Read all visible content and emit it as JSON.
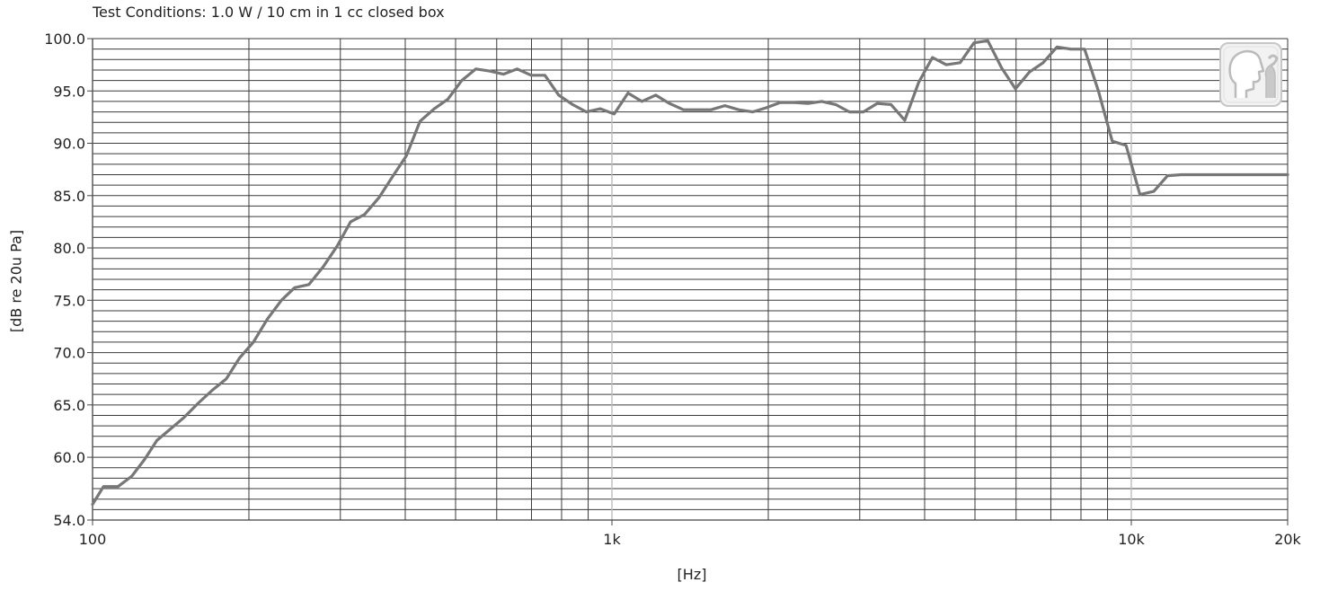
{
  "chart_data": {
    "type": "line",
    "title": "Test Conditions: 1.0 W  / 10 cm in 1 cc closed box",
    "xlabel": "[Hz]",
    "ylabel": "[dB re 20u Pa]",
    "x_scale": "log",
    "xlim": [
      100,
      20000
    ],
    "ylim": [
      54,
      100
    ],
    "x_ticks": [
      {
        "value": 100,
        "label": "100"
      },
      {
        "value": 1000,
        "label": "1k"
      },
      {
        "value": 10000,
        "label": "10k"
      },
      {
        "value": 20000,
        "label": "20k"
      }
    ],
    "y_ticks": [
      {
        "value": 100,
        "label": "100.0"
      },
      {
        "value": 95,
        "label": "95.0"
      },
      {
        "value": 90,
        "label": "90.0"
      },
      {
        "value": 85,
        "label": "85.0"
      },
      {
        "value": 80,
        "label": "80.0"
      },
      {
        "value": 75,
        "label": "75.0"
      },
      {
        "value": 70,
        "label": "70.0"
      },
      {
        "value": 65,
        "label": "65.0"
      },
      {
        "value": 60,
        "label": "60.0"
      },
      {
        "value": 54,
        "label": "54.0"
      }
    ],
    "grid": true,
    "line_color": "#777777",
    "series": [
      {
        "x": [
          100,
          105,
          112,
          119,
          126,
          133,
          142,
          150,
          160,
          170,
          181,
          192,
          204,
          217,
          231,
          245,
          261,
          278,
          296,
          314,
          334,
          356,
          378,
          402,
          427,
          455,
          483,
          514,
          547,
          581,
          618,
          657,
          699,
          743,
          790,
          840,
          893,
          950,
          1010,
          1074,
          1142,
          1214,
          1291,
          1373,
          1459,
          1552,
          1650,
          1754,
          1866,
          1984,
          2109,
          2243,
          2385,
          2535,
          2696,
          2866,
          3048,
          3240,
          3446,
          3663,
          3895,
          4141,
          4403,
          4682,
          4978,
          5293,
          5627,
          5983,
          6362,
          6764,
          7192,
          7647,
          8130,
          8644,
          9191,
          9772,
          10390,
          11047,
          11746,
          12489,
          13279,
          14119,
          15012,
          15961,
          16970,
          18044,
          19185,
          20000
        ],
        "y": [
          55.5,
          57.2,
          57.2,
          58.2,
          59.8,
          61.6,
          62.8,
          63.8,
          65.2,
          66.4,
          67.5,
          69.5,
          71.0,
          73.2,
          75.0,
          76.2,
          76.5,
          78.2,
          80.2,
          82.5,
          83.2,
          84.8,
          86.8,
          88.8,
          92.1,
          93.3,
          94.2,
          96.0,
          97.1,
          96.9,
          96.6,
          97.1,
          96.5,
          96.5,
          94.6,
          93.7,
          93.0,
          93.3,
          92.8,
          94.8,
          94.0,
          94.6,
          93.8,
          93.2,
          93.2,
          93.2,
          93.6,
          93.2,
          93.0,
          93.4,
          93.9,
          93.9,
          93.8,
          94.0,
          93.7,
          93.0,
          93.0,
          93.8,
          93.7,
          92.2,
          95.8,
          98.2,
          97.5,
          97.7,
          99.6,
          99.8,
          97.2,
          95.2,
          96.8,
          97.7,
          99.2,
          99.0,
          99.0,
          95.0,
          90.2,
          89.8,
          85.1,
          85.4,
          86.9,
          87.0,
          87.0,
          87.0,
          87.0,
          87.0,
          87.0,
          87.0,
          87.0,
          87.0
        ]
      }
    ]
  }
}
